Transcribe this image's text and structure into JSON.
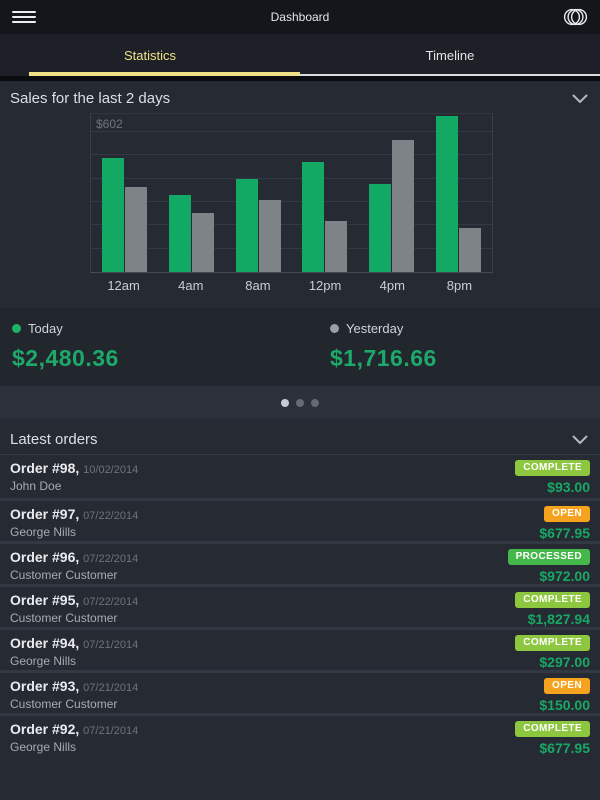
{
  "app": {
    "title": "Dashboard"
  },
  "tabs": [
    {
      "label": "Statistics",
      "active": true
    },
    {
      "label": "Timeline",
      "active": false
    }
  ],
  "sales_section": {
    "title": "Sales for the last 2 days"
  },
  "chart_data": {
    "type": "bar",
    "title": "Sales for the last 2 days",
    "categories": [
      "12am",
      "4am",
      "8am",
      "12pm",
      "4pm",
      "8pm"
    ],
    "series": [
      {
        "name": "Today",
        "color": "#12a964",
        "values": [
          490,
          330,
          400,
          475,
          380,
          670
        ]
      },
      {
        "name": "Yesterday",
        "color": "#7e8388",
        "values": [
          365,
          255,
          310,
          220,
          570,
          190
        ]
      }
    ],
    "ymax_label": "$602",
    "ylim": [
      0,
      680
    ],
    "gridlines": [
      100,
      201,
      301,
      401,
      502,
      602
    ],
    "xlabel": "",
    "ylabel": "",
    "legend_position": "bottom"
  },
  "legend": {
    "today": {
      "label": "Today",
      "value": "$2,480.36",
      "dot_color": "#1db468"
    },
    "yesterday": {
      "label": "Yesterday",
      "value": "$1,716.66",
      "dot_color": "#9aa0a8"
    }
  },
  "pagination": {
    "count": 3,
    "active_index": 0
  },
  "orders_section": {
    "title": "Latest orders"
  },
  "status_colors": {
    "complete": "#8dc63f",
    "open": "#f6a21e",
    "processed": "#45b649"
  },
  "orders": [
    {
      "id": "Order #98,",
      "date": "10/02/2014",
      "customer": "John Doe",
      "status": "COMPLETE",
      "status_color": "#8dc63f",
      "amount": "$93.00"
    },
    {
      "id": "Order #97,",
      "date": "07/22/2014",
      "customer": "George Nills",
      "status": "OPEN",
      "status_color": "#f6a21e",
      "amount": "$677.95"
    },
    {
      "id": "Order #96,",
      "date": "07/22/2014",
      "customer": "Customer Customer",
      "status": "PROCESSED",
      "status_color": "#45b649",
      "amount": "$972.00"
    },
    {
      "id": "Order #95,",
      "date": "07/22/2014",
      "customer": "Customer Customer",
      "status": "COMPLETE",
      "status_color": "#8dc63f",
      "amount": "$1,827.94"
    },
    {
      "id": "Order #94,",
      "date": "07/21/2014",
      "customer": "George Nills",
      "status": "COMPLETE",
      "status_color": "#8dc63f",
      "amount": "$297.00"
    },
    {
      "id": "Order #93,",
      "date": "07/21/2014",
      "customer": "Customer Customer",
      "status": "OPEN",
      "status_color": "#f6a21e",
      "amount": "$150.00"
    },
    {
      "id": "Order #92,",
      "date": "07/21/2014",
      "customer": "George Nills",
      "status": "COMPLETE",
      "status_color": "#8dc63f",
      "amount": "$677.95"
    }
  ]
}
